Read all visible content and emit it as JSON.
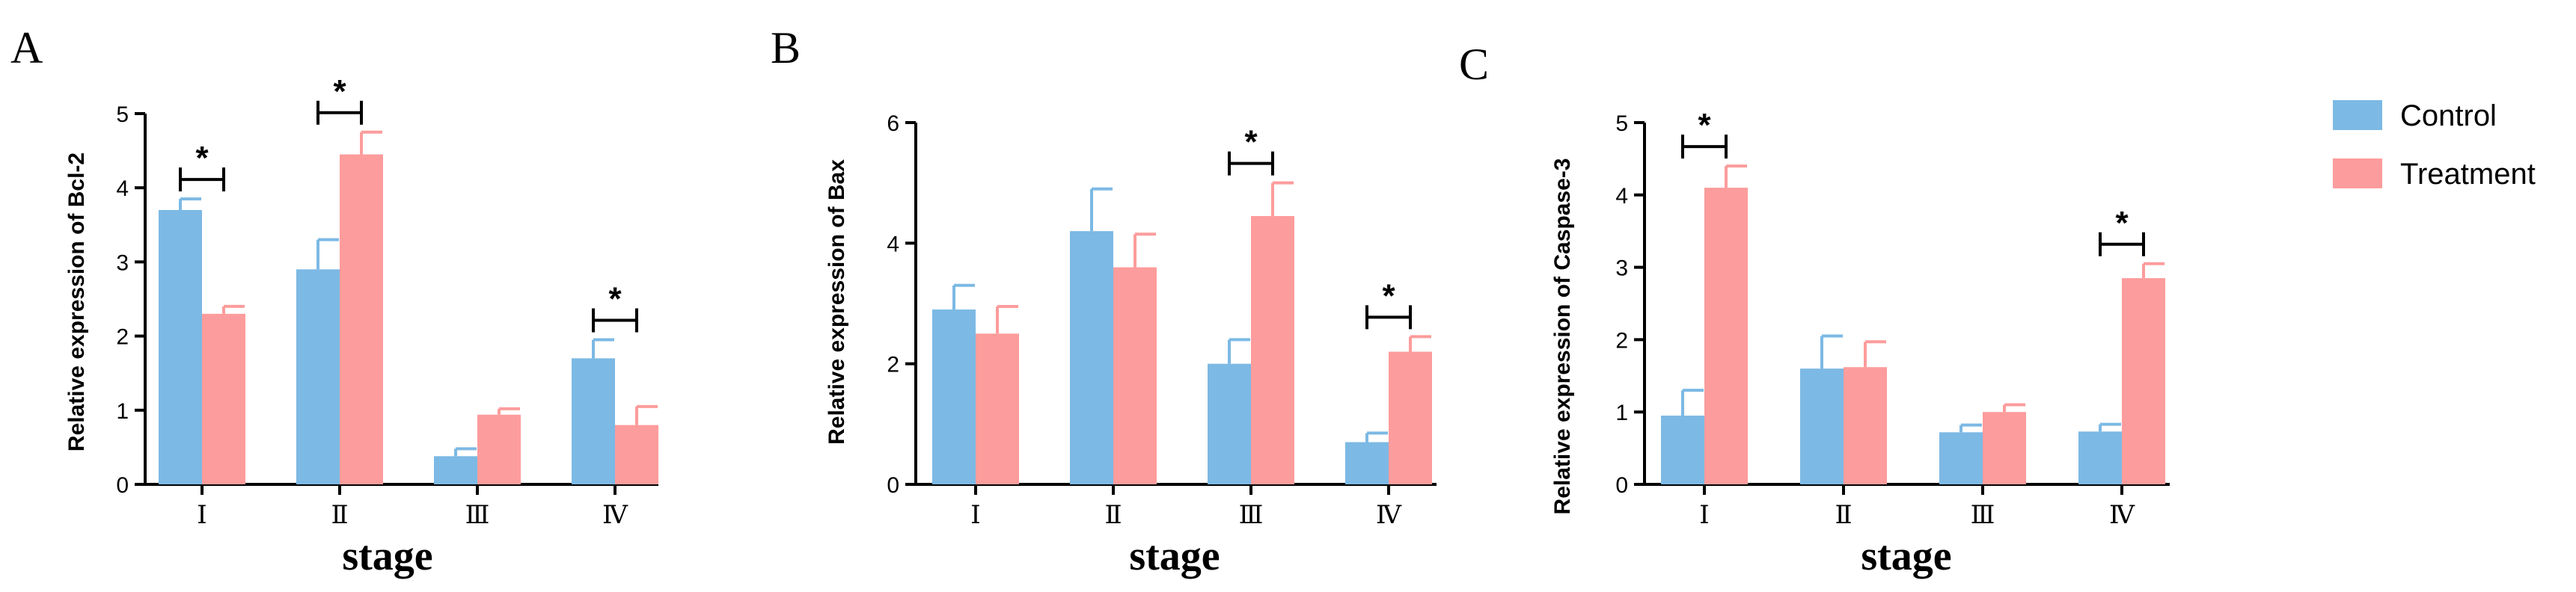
{
  "legend": {
    "entries": [
      {
        "label": "Control",
        "color": "#7cb9e4"
      },
      {
        "label": "Treatment",
        "color": "#fd9c9c"
      }
    ]
  },
  "chart_data": [
    {
      "panel": "A",
      "type": "bar",
      "title": "",
      "xlabel": "stage",
      "ylabel": "Relative expression of Bcl-2",
      "categories": [
        "Ⅰ",
        "Ⅱ",
        "Ⅲ",
        "Ⅳ"
      ],
      "ylim": [
        0,
        5
      ],
      "yticks": [
        0,
        1,
        2,
        3,
        4,
        5
      ],
      "series": [
        {
          "name": "Control",
          "values": [
            3.7,
            2.9,
            0.38,
            1.7
          ],
          "errors": [
            0.15,
            0.4,
            0.1,
            0.25
          ]
        },
        {
          "name": "Treatment",
          "values": [
            2.3,
            4.45,
            0.94,
            0.8
          ],
          "errors": [
            0.1,
            0.3,
            0.08,
            0.25
          ]
        }
      ],
      "significance": [
        {
          "category": "Ⅰ",
          "label": "*"
        },
        {
          "category": "Ⅱ",
          "label": "*"
        },
        {
          "category": "Ⅳ",
          "label": "*"
        }
      ]
    },
    {
      "panel": "B",
      "type": "bar",
      "title": "",
      "xlabel": "stage",
      "ylabel": "Relative expression of Bax",
      "categories": [
        "Ⅰ",
        "Ⅱ",
        "Ⅲ",
        "Ⅳ"
      ],
      "ylim": [
        0,
        6
      ],
      "yticks": [
        0,
        2,
        4,
        6
      ],
      "series": [
        {
          "name": "Control",
          "values": [
            2.9,
            4.2,
            2.0,
            0.7
          ],
          "errors": [
            0.4,
            0.7,
            0.4,
            0.15
          ]
        },
        {
          "name": "Treatment",
          "values": [
            2.5,
            3.6,
            4.45,
            2.2
          ],
          "errors": [
            0.45,
            0.55,
            0.55,
            0.25
          ]
        }
      ],
      "significance": [
        {
          "category": "Ⅲ",
          "label": "*"
        },
        {
          "category": "Ⅳ",
          "label": "*"
        }
      ]
    },
    {
      "panel": "C",
      "type": "bar",
      "title": "",
      "xlabel": "stage",
      "ylabel": "Relative expression of Caspase-3",
      "categories": [
        "Ⅰ",
        "Ⅱ",
        "Ⅲ",
        "Ⅳ"
      ],
      "ylim": [
        0,
        5
      ],
      "yticks": [
        0,
        1,
        2,
        3,
        4,
        5
      ],
      "series": [
        {
          "name": "Control",
          "values": [
            0.95,
            1.6,
            0.72,
            0.73
          ],
          "errors": [
            0.35,
            0.45,
            0.1,
            0.1
          ]
        },
        {
          "name": "Treatment",
          "values": [
            4.1,
            1.62,
            1.0,
            2.85
          ],
          "errors": [
            0.3,
            0.35,
            0.1,
            0.2
          ]
        }
      ],
      "significance": [
        {
          "category": "Ⅰ",
          "label": "*"
        },
        {
          "category": "Ⅳ",
          "label": "*"
        }
      ]
    }
  ]
}
